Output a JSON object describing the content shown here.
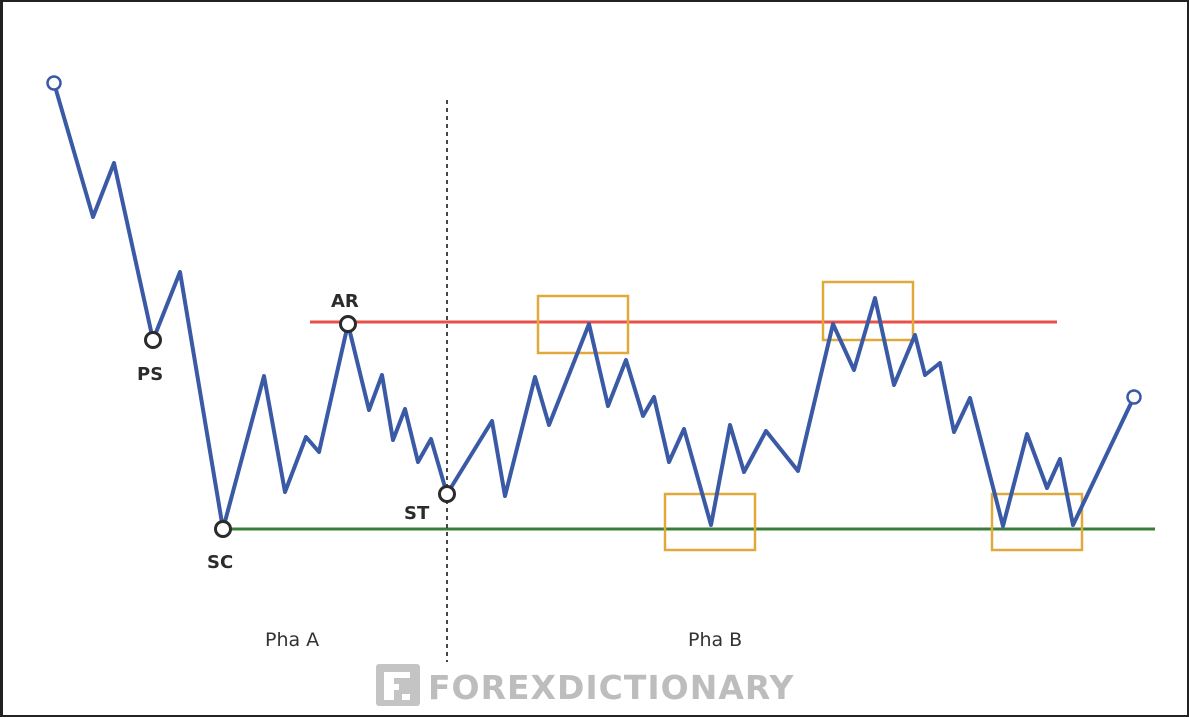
{
  "labels": {
    "ps": "PS",
    "sc": "SC",
    "ar": "AR",
    "st": "ST"
  },
  "phases": {
    "a": "Pha A",
    "b": "Pha B"
  },
  "watermark": {
    "text": "FOREXDICTIONARY",
    "logo_icon": "fd-logo-icon"
  },
  "colors": {
    "price_line": "#3a5aa6",
    "resistance": "#e8504a",
    "support": "#3a7d3a",
    "highlight_box": "#e0a93a",
    "divider": "#333333"
  }
}
